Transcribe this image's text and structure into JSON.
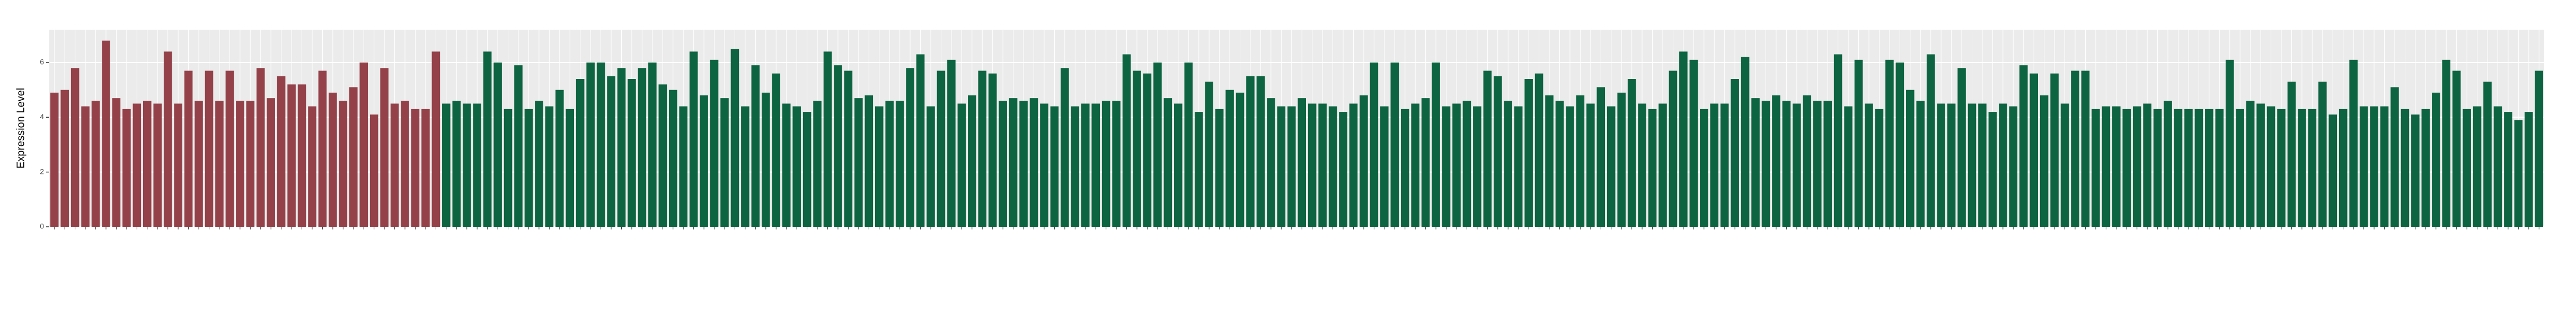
{
  "chart_data": {
    "type": "bar",
    "y_label": "Expression Level",
    "ylim": [
      0,
      7.2
    ],
    "yticks": [
      0,
      2,
      4,
      6
    ],
    "grid": true,
    "series": [
      {
        "color": "#94414a",
        "values": [
          4.9,
          5.0,
          5.8,
          4.4,
          4.6,
          6.8,
          4.7,
          4.3,
          4.5,
          4.6,
          4.5,
          6.4,
          4.5,
          5.7,
          4.6,
          5.7,
          4.6,
          5.7,
          4.6,
          4.6,
          5.8,
          4.7,
          5.5,
          5.2,
          5.2,
          4.4,
          5.7,
          4.9,
          4.6,
          5.1,
          6.0,
          4.1,
          5.8,
          4.5,
          4.6,
          4.3,
          4.3,
          6.4
        ]
      },
      {
        "color": "#0c6440",
        "values": [
          4.5,
          4.6,
          4.5,
          4.5,
          6.4,
          6.0,
          4.3,
          5.9,
          4.3,
          4.6,
          4.4,
          5.0,
          4.3,
          5.4,
          6.0,
          6.0,
          5.5,
          5.8,
          5.4,
          5.8,
          6.0,
          5.2,
          5.0,
          4.4,
          6.4,
          4.8,
          6.1,
          4.7,
          6.5,
          4.4,
          5.9,
          4.9,
          5.6,
          4.5,
          4.4,
          4.2,
          4.6,
          6.4,
          5.9,
          5.7,
          4.7,
          4.8,
          4.4,
          4.6,
          4.6,
          5.8,
          6.3,
          4.4,
          5.7,
          6.1,
          4.5,
          4.8,
          5.7,
          5.6,
          4.6,
          4.7,
          4.6,
          4.7,
          4.5,
          4.4,
          5.8,
          4.4,
          4.5,
          4.5,
          4.6,
          4.6,
          6.3,
          5.7,
          5.6,
          6.0,
          4.7,
          4.5,
          6.0,
          4.2,
          5.3,
          4.3,
          5.0,
          4.9,
          5.5,
          5.5,
          4.7,
          4.4,
          4.4,
          4.7,
          4.5,
          4.5,
          4.4,
          4.2,
          4.5,
          4.8,
          6.0,
          4.4,
          6.0,
          4.3,
          4.5,
          4.7,
          6.0,
          4.4,
          4.5,
          4.6,
          4.4,
          5.7,
          5.5,
          4.6,
          4.4,
          5.4,
          5.6,
          4.8,
          4.6,
          4.4,
          4.8,
          4.5,
          5.1,
          4.4,
          4.9,
          5.4,
          4.5,
          4.3,
          4.5,
          5.7,
          6.4,
          6.1,
          4.3,
          4.5,
          4.5,
          5.4,
          6.2,
          4.7,
          4.6,
          4.8,
          4.6,
          4.5,
          4.8,
          4.6,
          4.6,
          6.3,
          4.4,
          6.1,
          4.5,
          4.3,
          6.1,
          6.0,
          5.0,
          4.6,
          6.3,
          4.5,
          4.5,
          5.8,
          4.5,
          4.5,
          4.2,
          4.5,
          4.4,
          5.9,
          5.6,
          4.8,
          5.6,
          4.5,
          5.7,
          5.7,
          4.3,
          4.4,
          4.4,
          4.3,
          4.4,
          4.5,
          4.3,
          4.6,
          4.3,
          4.3,
          4.3,
          4.3,
          4.3,
          6.1,
          4.3,
          4.6,
          4.5,
          4.4,
          4.3,
          5.3,
          4.3,
          4.3,
          5.3,
          4.1,
          4.3,
          6.1,
          4.4,
          4.4,
          4.4,
          5.1,
          4.3,
          4.1,
          4.3,
          4.9,
          6.1,
          5.7,
          4.3,
          4.4,
          5.3,
          4.4,
          4.2,
          3.9,
          4.2,
          5.7
        ]
      }
    ]
  }
}
